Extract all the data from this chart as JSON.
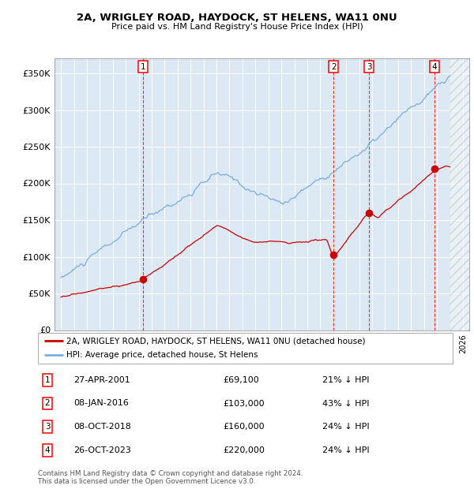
{
  "title1": "2A, WRIGLEY ROAD, HAYDOCK, ST HELENS, WA11 0NU",
  "title2": "Price paid vs. HM Land Registry's House Price Index (HPI)",
  "background_color": "#dce9f5",
  "plot_bg": "#dce9f5",
  "hpi_color": "#7aade0",
  "price_color": "#cc0000",
  "sale_dates_num": [
    2001.32,
    2016.03,
    2018.77,
    2023.82
  ],
  "sale_prices": [
    69100,
    103000,
    160000,
    220000
  ],
  "sale_labels": [
    "1",
    "2",
    "3",
    "4"
  ],
  "table_rows": [
    [
      "1",
      "27-APR-2001",
      "£69,100",
      "21% ↓ HPI"
    ],
    [
      "2",
      "08-JAN-2016",
      "£103,000",
      "43% ↓ HPI"
    ],
    [
      "3",
      "08-OCT-2018",
      "£160,000",
      "24% ↓ HPI"
    ],
    [
      "4",
      "26-OCT-2023",
      "£220,000",
      "24% ↓ HPI"
    ]
  ],
  "legend_entries": [
    "2A, WRIGLEY ROAD, HAYDOCK, ST HELENS, WA11 0NU (detached house)",
    "HPI: Average price, detached house, St Helens"
  ],
  "footer": "Contains HM Land Registry data © Crown copyright and database right 2024.\nThis data is licensed under the Open Government Licence v3.0.",
  "ylim": [
    0,
    370000
  ],
  "xlim_start": 1994.5,
  "xlim_end": 2026.5,
  "yticks": [
    0,
    50000,
    100000,
    150000,
    200000,
    250000,
    300000,
    350000
  ],
  "ytick_labels": [
    "£0",
    "£50K",
    "£100K",
    "£150K",
    "£200K",
    "£250K",
    "£300K",
    "£350K"
  ],
  "hatch_start": 2025.0
}
